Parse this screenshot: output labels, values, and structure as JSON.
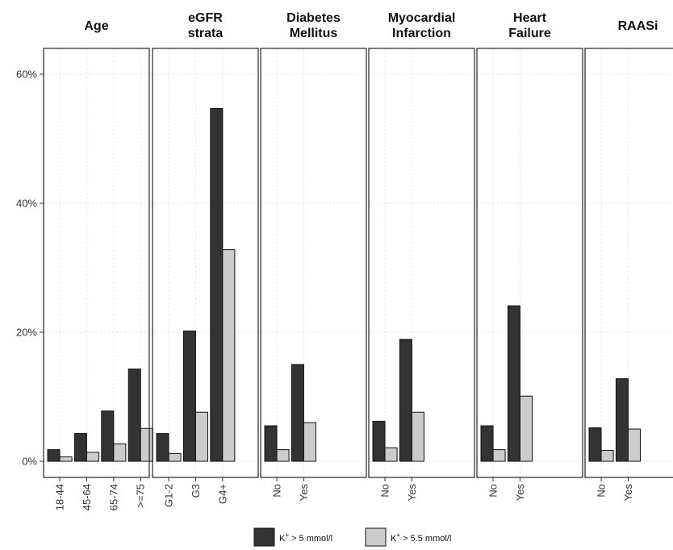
{
  "chart_data": {
    "type": "bar",
    "y_tick_labels": [
      "0%",
      "20%",
      "40%",
      "60%"
    ],
    "y_ticks": [
      0,
      20,
      40,
      60
    ],
    "ylim": [
      -2.5,
      64
    ],
    "grid": true,
    "legend_position": "bottom",
    "colors": {
      "series_1": "#333333",
      "series_2": "#cccccc"
    },
    "legend": [
      {
        "prefix": "K",
        "sup": "+",
        "suffix": " > 5 mmol/l"
      },
      {
        "prefix": "K",
        "sup": "+",
        "suffix": " > 5.5 mmol/l"
      }
    ],
    "facets": [
      {
        "title_lines": [
          "Age"
        ],
        "categories": [
          "18-44",
          "45-64",
          "65-74",
          ">=75"
        ],
        "series": [
          {
            "values": [
              1.8,
              4.3,
              7.8,
              14.3
            ]
          },
          {
            "values": [
              0.7,
              1.4,
              2.7,
              5.1
            ]
          }
        ]
      },
      {
        "title_lines": [
          "eGFR",
          "strata"
        ],
        "categories": [
          "G1-2",
          "G3",
          "G4+"
        ],
        "series": [
          {
            "values": [
              4.3,
              20.2,
              54.7
            ]
          },
          {
            "values": [
              1.2,
              7.6,
              32.8
            ]
          }
        ]
      },
      {
        "title_lines": [
          "Diabetes",
          "Mellitus"
        ],
        "categories": [
          "No",
          "Yes"
        ],
        "series": [
          {
            "values": [
              5.5,
              15.0
            ]
          },
          {
            "values": [
              1.8,
              6.0
            ]
          }
        ]
      },
      {
        "title_lines": [
          "Myocardial",
          "Infarction"
        ],
        "categories": [
          "No",
          "Yes"
        ],
        "series": [
          {
            "values": [
              6.2,
              18.9
            ]
          },
          {
            "values": [
              2.1,
              7.6
            ]
          }
        ]
      },
      {
        "title_lines": [
          "Heart",
          "Failure"
        ],
        "categories": [
          "No",
          "Yes"
        ],
        "series": [
          {
            "values": [
              5.5,
              24.1
            ]
          },
          {
            "values": [
              1.8,
              10.1
            ]
          }
        ]
      },
      {
        "title_lines": [
          "RAASi"
        ],
        "categories": [
          "No",
          "Yes"
        ],
        "series": [
          {
            "values": [
              5.2,
              12.8
            ]
          },
          {
            "values": [
              1.7,
              5.0
            ]
          }
        ]
      }
    ]
  }
}
